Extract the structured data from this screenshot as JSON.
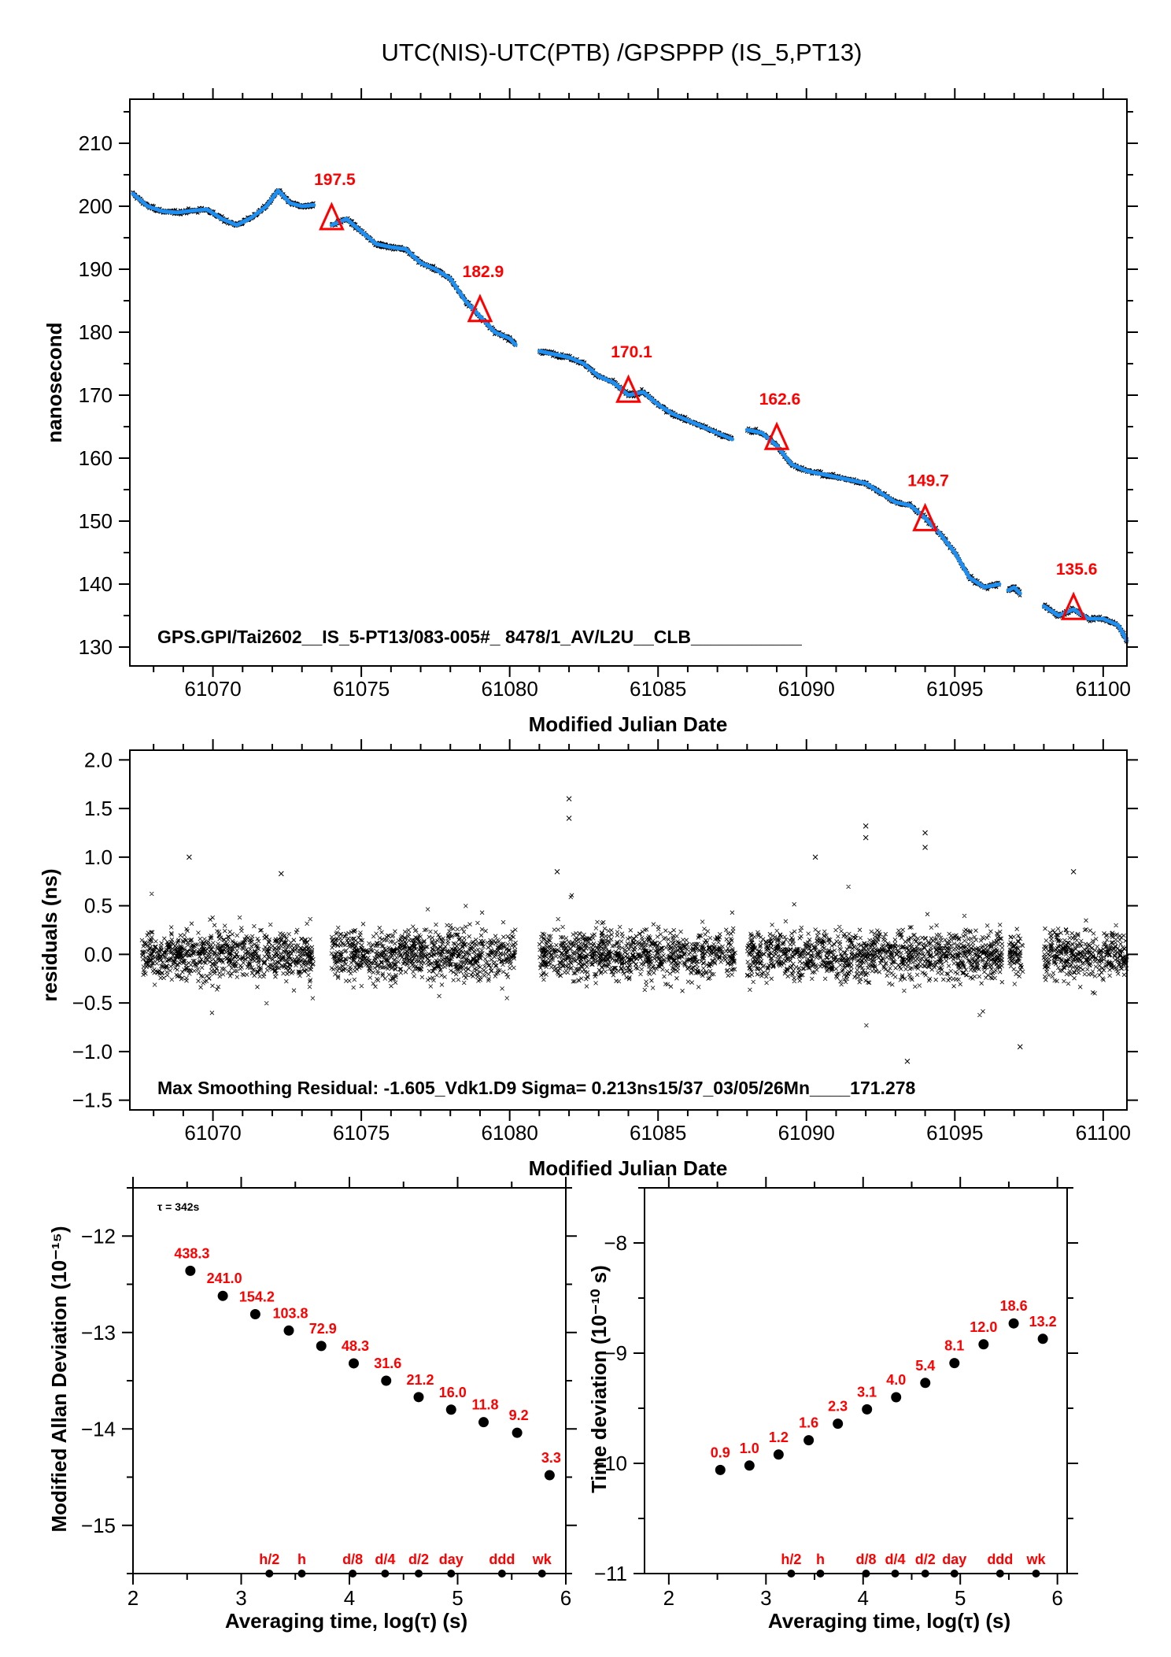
{
  "figure_title": "UTC(NIS)-UTC(PTB)  /GPSPPP  (IS_5,PT13)",
  "colors": {
    "smoothed_line": "#1e8ff0",
    "raw_points": "#000000",
    "markers": "#ff0000",
    "labels_red": "#ff0000"
  },
  "chart_data": [
    {
      "id": "time-series",
      "type": "line",
      "title": "UTC(NIS)-UTC(PTB)  /GPSPPP  (IS_5,PT13)",
      "xlabel": "Modified Julian Date",
      "ylabel": "nanosecond",
      "xlim": [
        61067.2,
        61100.8
      ],
      "ylim": [
        127.0,
        217.0
      ],
      "xticks": [
        61070,
        61075,
        61080,
        61085,
        61090,
        61095,
        61100
      ],
      "xtick_labels": [
        "61070",
        "61075",
        "61080",
        "61085",
        "61090",
        "61095",
        "61100"
      ],
      "yticks": [
        130,
        140,
        150,
        160,
        170,
        180,
        190,
        200,
        210
      ],
      "ytick_labels": [
        "130",
        "140",
        "150",
        "160",
        "170",
        "180",
        "190",
        "200",
        "210"
      ],
      "annotation": "GPS.GPI/Tai2602__IS_5-PT13/083-005#_  8478/1_AV/L2U__CLB___________",
      "series": [
        {
          "name": "smoothed",
          "segments": [
            {
              "x": [
                61067.3,
                61067.8,
                61068.3,
                61068.8,
                61069.3,
                61069.8,
                61070.3,
                61070.8,
                61071.3,
                61071.8,
                61072.2,
                61072.6,
                61073.0,
                61073.4
              ],
              "y": [
                202.0,
                200.0,
                199.2,
                199.0,
                199.3,
                199.5,
                198.0,
                197.0,
                198.2,
                200.0,
                202.5,
                200.5,
                200.0,
                200.2
              ]
            },
            {
              "x": [
                61074.0,
                61074.5,
                61075.0,
                61075.5,
                61076.0,
                61076.5,
                61077.0,
                61077.5,
                61078.0,
                61078.5,
                61079.0,
                61079.5,
                61080.0,
                61080.2
              ],
              "y": [
                197.0,
                198.0,
                196.0,
                194.0,
                193.5,
                193.2,
                191.0,
                190.0,
                188.5,
                185.0,
                182.5,
                180.0,
                179.0,
                178.0
              ]
            },
            {
              "x": [
                61081.0,
                61081.5,
                61082.0,
                61082.5,
                61083.0,
                61083.5,
                61084.0,
                61084.5,
                61085.0,
                61085.5,
                61086.0,
                61086.5,
                61087.0,
                61087.5
              ],
              "y": [
                177.0,
                176.5,
                176.0,
                175.0,
                173.0,
                172.0,
                170.0,
                170.5,
                168.5,
                167.0,
                166.0,
                165.0,
                164.0,
                163.0
              ]
            },
            {
              "x": [
                61088.0,
                61088.5,
                61089.0,
                61089.5,
                61090.0,
                61090.5,
                61091.0,
                61091.5,
                61092.0,
                61092.5,
                61093.0,
                61093.5,
                61094.0,
                61094.5,
                61095.0,
                61095.5,
                61096.0,
                61096.5
              ],
              "y": [
                164.5,
                164.0,
                162.0,
                159.0,
                158.0,
                157.5,
                157.0,
                156.5,
                156.0,
                154.5,
                153.0,
                152.5,
                150.5,
                148.0,
                145.0,
                141.0,
                139.5,
                140.0
              ]
            },
            {
              "x": [
                61096.8,
                61097.0,
                61097.2
              ],
              "y": [
                139.0,
                139.5,
                138.5
              ]
            },
            {
              "x": [
                61098.0,
                61098.5,
                61099.0,
                61099.5,
                61100.0,
                61100.5,
                61100.8
              ],
              "y": [
                136.5,
                135.0,
                136.0,
                134.5,
                134.5,
                133.5,
                131.0
              ]
            }
          ]
        },
        {
          "name": "markers",
          "marker": "triangle",
          "x": [
            61074.0,
            61079.0,
            61084.0,
            61089.0,
            61094.0,
            61099.0
          ],
          "y": [
            197.5,
            182.9,
            170.1,
            162.6,
            149.7,
            135.6
          ],
          "labels": [
            "197.5",
            "182.9",
            "170.1",
            "162.6",
            "149.7",
            "135.6"
          ]
        }
      ]
    },
    {
      "id": "residuals",
      "type": "scatter",
      "xlabel": "Modified Julian Date",
      "ylabel": "residuals (ns)",
      "xlim": [
        61067.2,
        61100.8
      ],
      "ylim": [
        -1.6,
        2.1
      ],
      "xticks": [
        61070,
        61075,
        61080,
        61085,
        61090,
        61095,
        61100
      ],
      "xtick_labels": [
        "61070",
        "61075",
        "61080",
        "61085",
        "61090",
        "61095",
        "61100"
      ],
      "yticks": [
        -1.5,
        -1.0,
        -0.5,
        0.0,
        0.5,
        1.0,
        1.5,
        2.0
      ],
      "ytick_labels": [
        "−1.5",
        "−1.0",
        "−0.5",
        "0.0",
        "0.5",
        "1.0",
        "1.5",
        "2.0"
      ],
      "annotation": "Max Smoothing Residual: -1.605_Vdk1.D9  Sigma= 0.213ns15/37_03/05/26Mn____171.278",
      "data_segments": [
        [
          61067.6,
          61073.4
        ],
        [
          61074.0,
          61080.2
        ],
        [
          61081.0,
          61087.6
        ],
        [
          61088.0,
          61096.6
        ],
        [
          61096.8,
          61097.3
        ],
        [
          61098.0,
          61100.8
        ]
      ],
      "sigma_ns": 0.213,
      "outliers": {
        "x": [
          61069.2,
          61072.3,
          61082.0,
          61082.0,
          61081.6,
          61092.0,
          61092.0,
          61094.0,
          61094.0,
          61093.4,
          61099.0,
          61097.2,
          61090.3
        ],
        "y": [
          1.0,
          0.83,
          1.6,
          1.4,
          0.85,
          1.32,
          1.2,
          1.25,
          1.1,
          -1.1,
          0.85,
          -0.95,
          1.0
        ]
      }
    },
    {
      "id": "mdev",
      "type": "scatter",
      "xlabel": "Averaging time, log(τ) (s)",
      "ylabel": "Modified Allan Deviation (10⁻¹⁵)",
      "xlim": [
        2.0,
        6.0
      ],
      "ylim": [
        -15.5,
        -11.5
      ],
      "xticks": [
        2,
        3,
        4,
        5,
        6
      ],
      "xtick_labels": [
        "2",
        "3",
        "4",
        "5",
        "6"
      ],
      "yticks": [
        -12,
        -13,
        -14,
        -15
      ],
      "ytick_labels": [
        "−12",
        "−13",
        "−14",
        "−15"
      ],
      "tau_note": "τ = 342s",
      "x": [
        2.53,
        2.83,
        3.13,
        3.44,
        3.74,
        4.04,
        4.34,
        4.64,
        4.94,
        5.24,
        5.55,
        5.85
      ],
      "y": [
        -12.36,
        -12.62,
        -12.81,
        -12.98,
        -13.14,
        -13.32,
        -13.5,
        -13.67,
        -13.8,
        -13.93,
        -14.04,
        -14.48
      ],
      "labels": [
        "438.3",
        "241.0",
        "154.2",
        "103.8",
        "72.9",
        "48.3",
        "31.6",
        "21.2",
        "16.0",
        "11.8",
        "9.2",
        "3.3"
      ],
      "time_markers": {
        "x": [
          3.26,
          3.56,
          4.03,
          4.33,
          4.64,
          4.94,
          5.41,
          5.78
        ],
        "labels": [
          "h/2",
          "h",
          "d/8",
          "d/4",
          "d/2",
          "day",
          "ddd",
          "wk"
        ]
      }
    },
    {
      "id": "tdev",
      "type": "scatter",
      "xlabel": "Averaging time, log(τ) (s)",
      "ylabel": "Time deviation (10⁻¹⁰ s)",
      "xlim": [
        1.75,
        6.1
      ],
      "ylim": [
        -11.0,
        -7.5
      ],
      "xticks": [
        2,
        3,
        4,
        5,
        6
      ],
      "xtick_labels": [
        "2",
        "3",
        "4",
        "5",
        "6"
      ],
      "yticks": [
        -8,
        -9,
        -10,
        -11
      ],
      "ytick_labels": [
        "−8",
        "−9",
        "−10",
        "−11"
      ],
      "x": [
        2.53,
        2.83,
        3.13,
        3.44,
        3.74,
        4.04,
        4.34,
        4.64,
        4.94,
        5.24,
        5.55,
        5.85
      ],
      "y": [
        -10.06,
        -10.02,
        -9.92,
        -9.79,
        -9.64,
        -9.51,
        -9.4,
        -9.27,
        -9.09,
        -8.92,
        -8.73,
        -8.87
      ],
      "labels": [
        "0.9",
        "1.0",
        "1.2",
        "1.6",
        "2.3",
        "3.1",
        "4.0",
        "5.4",
        "8.1",
        "12.0",
        "18.6",
        "13.2"
      ],
      "time_markers": {
        "x": [
          3.26,
          3.56,
          4.03,
          4.33,
          4.64,
          4.94,
          5.41,
          5.78
        ],
        "labels": [
          "h/2",
          "h",
          "d/8",
          "d/4",
          "d/2",
          "day",
          "ddd",
          "wk"
        ]
      }
    }
  ]
}
